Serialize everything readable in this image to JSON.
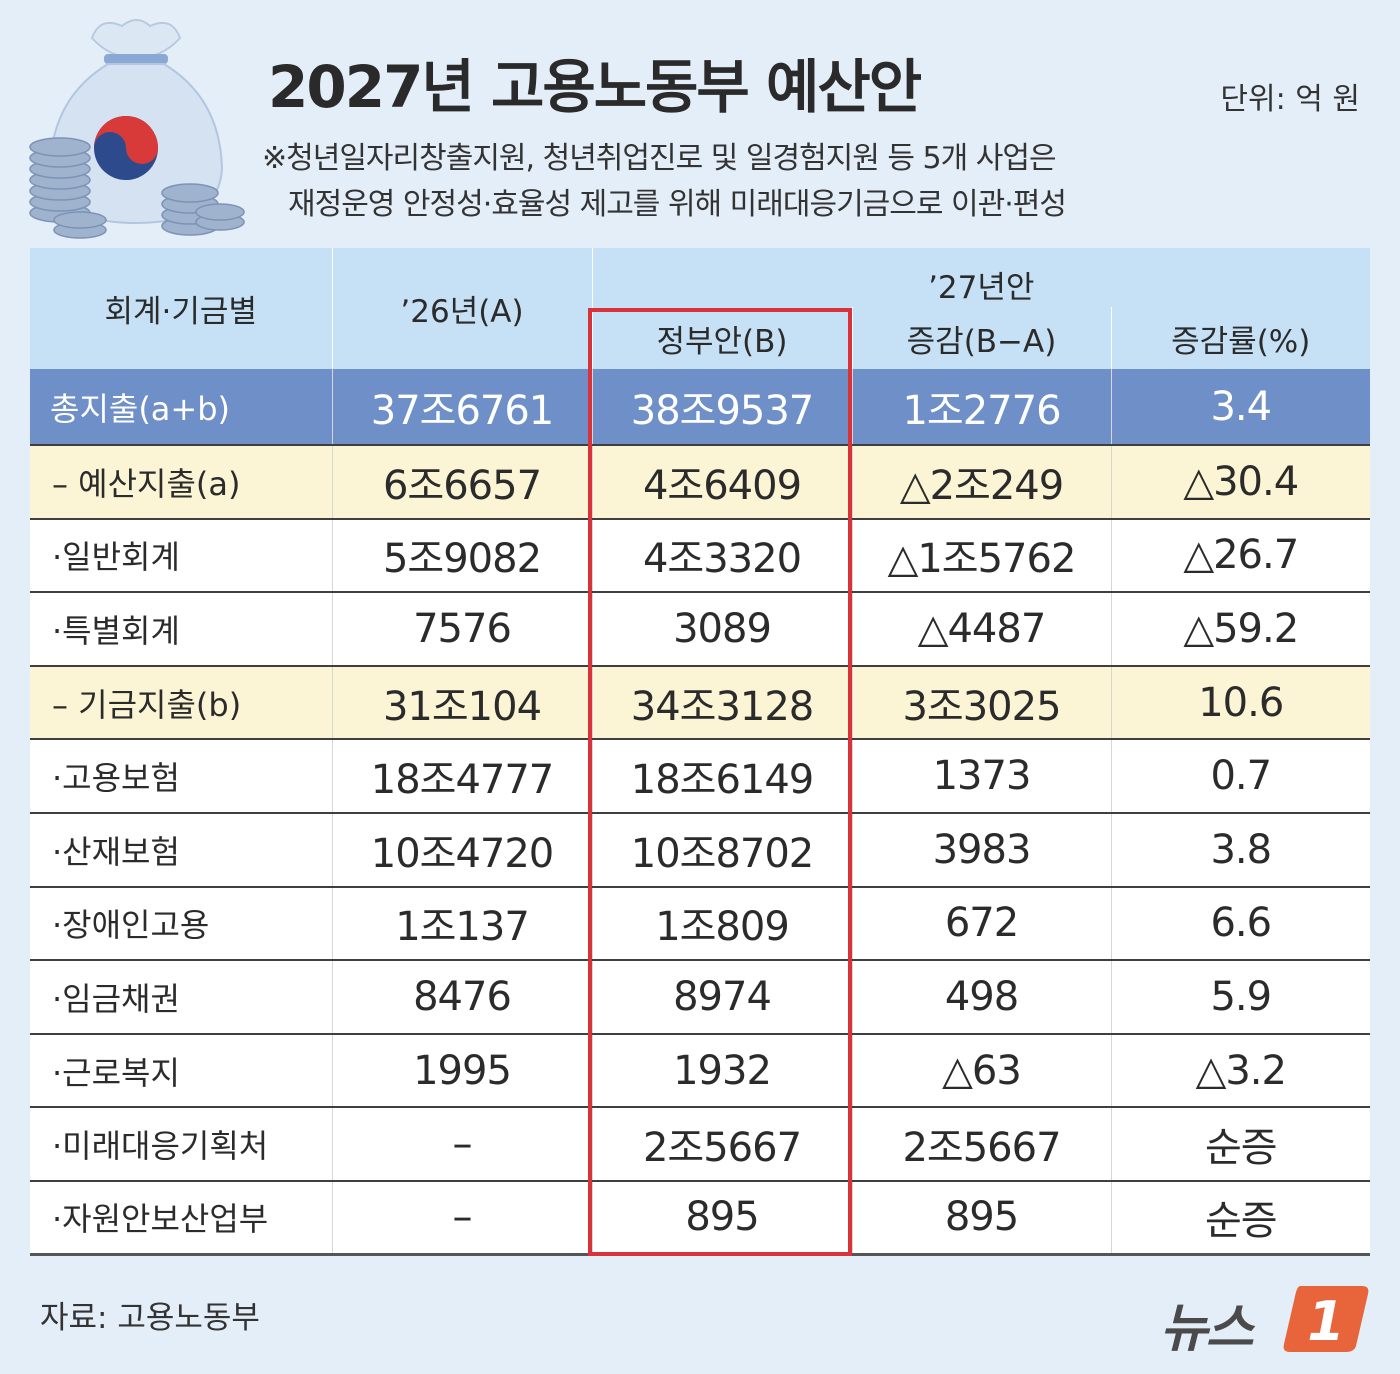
{
  "title": "2027년 고용노동부 예산안",
  "unit": "단위: 억 원",
  "note_line1": "※청년일자리창출지원, 청년취업진로 및 일경험지원 등 5개 사업은",
  "note_line2": "재정운영 안정성·효율성 제고를 위해 미래대응기금으로 이관·편성",
  "header": {
    "col_label": "회계·기금별",
    "col_a": "’26년(A)",
    "group_27": "’27년안",
    "col_b": "정부안(B)",
    "col_diff": "증감(B−A)",
    "col_rate": "증감률(%)"
  },
  "rows": [
    {
      "label": "총지출(a+b)",
      "a": "37조6761",
      "b": "38조9537",
      "diff": "1조2776",
      "rate": "3.4"
    },
    {
      "label": "– 예산지출(a)",
      "a": "6조6657",
      "b": "4조6409",
      "diff": "△2조249",
      "rate": "△30.4"
    },
    {
      "label": "·일반회계",
      "a": "5조9082",
      "b": "4조3320",
      "diff": "△1조5762",
      "rate": "△26.7"
    },
    {
      "label": "·특별회계",
      "a": "7576",
      "b": "3089",
      "diff": "△4487",
      "rate": "△59.2"
    },
    {
      "label": "– 기금지출(b)",
      "a": "31조104",
      "b": "34조3128",
      "diff": "3조3025",
      "rate": "10.6"
    },
    {
      "label": "·고용보험",
      "a": "18조4777",
      "b": "18조6149",
      "diff": "1373",
      "rate": "0.7"
    },
    {
      "label": "·산재보험",
      "a": "10조4720",
      "b": "10조8702",
      "diff": "3983",
      "rate": "3.8"
    },
    {
      "label": "·장애인고용",
      "a": "1조137",
      "b": "1조809",
      "diff": "672",
      "rate": "6.6"
    },
    {
      "label": "·임금채권",
      "a": "8476",
      "b": "8974",
      "diff": "498",
      "rate": "5.9"
    },
    {
      "label": "·근로복지",
      "a": "1995",
      "b": "1932",
      "diff": "△63",
      "rate": "△3.2"
    },
    {
      "label": "·미래대응기획처",
      "a": "–",
      "b": "2조5667",
      "diff": "2조5667",
      "rate": "순증"
    },
    {
      "label": "·자원안보산업부",
      "a": "–",
      "b": "895",
      "diff": "895",
      "rate": "순증"
    }
  ],
  "source": "자료: 고용노동부",
  "logo_text": "뉴스",
  "logo_mark": "1",
  "colors": {
    "background": "#e4eef9",
    "header": "#c6e0f5",
    "total_row": "#6f8fc8",
    "subtotal_row": "#fbf5d6",
    "highlight_box": "#d8323a",
    "logo_accent": "#e8643a"
  }
}
